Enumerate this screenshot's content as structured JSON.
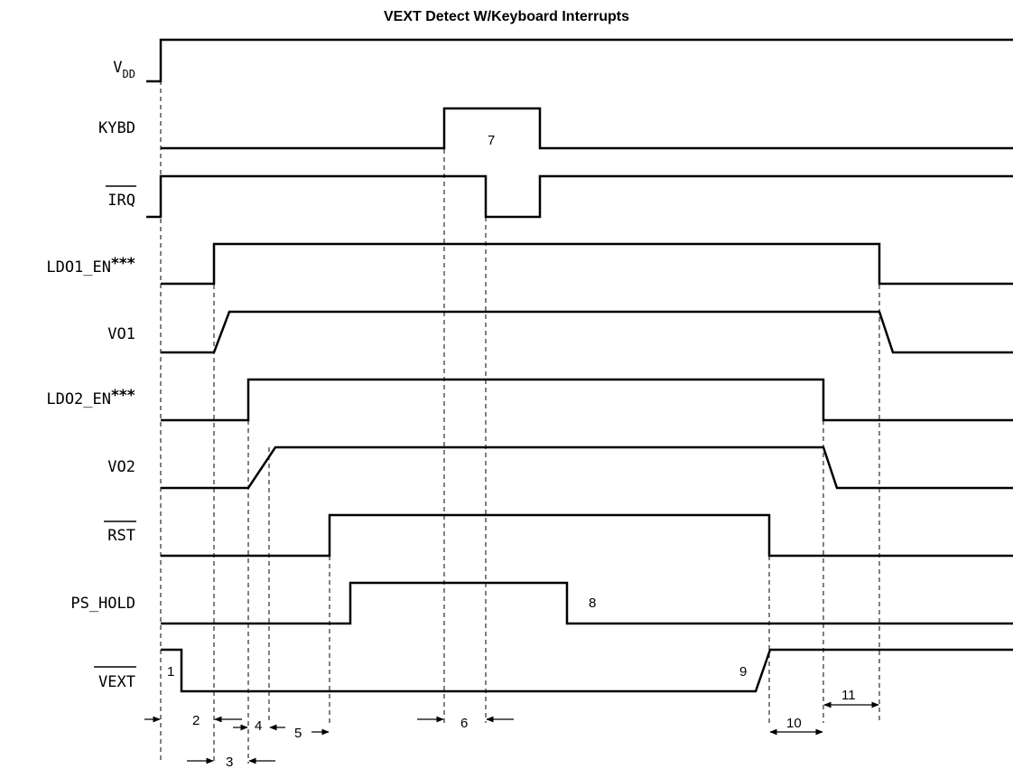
{
  "title": "VEXT Detect W/Keyboard Interrupts",
  "signals": [
    {
      "id": "vdd",
      "label_main": "V",
      "label_sub": "DD"
    },
    {
      "id": "kybd",
      "label": "KYBD"
    },
    {
      "id": "irq",
      "label": "IRQ",
      "overbar": true
    },
    {
      "id": "ldo1_en",
      "label": "LDO1_EN",
      "suffix": "***"
    },
    {
      "id": "vo1",
      "label": "VO1"
    },
    {
      "id": "ldo2_en",
      "label": "LDO2_EN",
      "suffix": "***"
    },
    {
      "id": "vo2",
      "label": "VO2"
    },
    {
      "id": "rst",
      "label": "RST",
      "overbar": true
    },
    {
      "id": "ps_hold",
      "label": "PS_HOLD"
    },
    {
      "id": "vext",
      "label": "VEXT",
      "overbar": true
    }
  ],
  "annotations": {
    "n1": "1",
    "n2": "2",
    "n3": "3",
    "n4": "4",
    "n5": "5",
    "n6": "6",
    "n7": "7",
    "n8": "8",
    "n9": "9",
    "n10": "10",
    "n11": "11"
  }
}
